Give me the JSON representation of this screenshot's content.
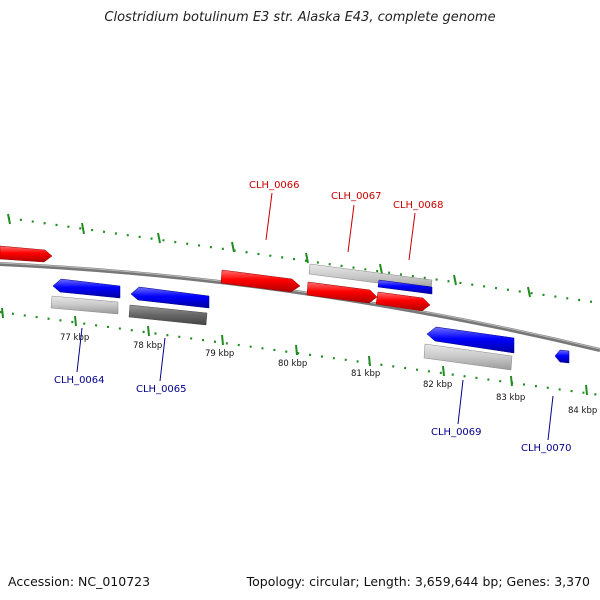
{
  "title": "Clostridium botulinum E3 str. Alaska E43, complete genome",
  "footer": {
    "accession": "Accession: NC_010723",
    "summary": "Topology: circular; Length: 3,659,644 bp; Genes: 3,370"
  },
  "colors": {
    "forward": "#ff0000",
    "reverse": "#0000ff",
    "forward_label": "#cc0000",
    "reverse_label": "#00008b",
    "tick": "#228b22",
    "backbone": "#888888",
    "feature_light": "#c8c8c8",
    "feature_dark": "#666666"
  },
  "kbp_labels": [
    "77 kbp",
    "78 kbp",
    "79 kbp",
    "80 kbp",
    "81 kbp",
    "82 kbp",
    "83 kbp",
    "84 kbp"
  ],
  "forward_genes": [
    "CLH_0066",
    "CLH_0067",
    "CLH_0068"
  ],
  "reverse_genes": [
    "CLH_0064",
    "CLH_0065",
    "CLH_0069",
    "CLH_0070"
  ]
}
